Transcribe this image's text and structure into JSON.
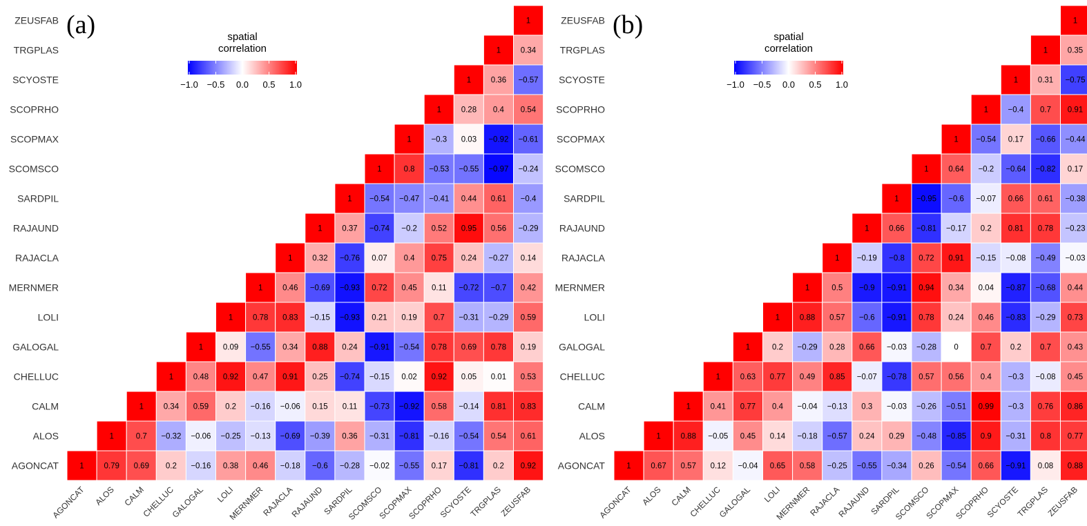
{
  "chart_data": [
    {
      "type": "heatmap",
      "panel_label": "(a)",
      "legend": {
        "title_lines": [
          "spatial",
          "correlation"
        ],
        "ticks": [
          "−1.0",
          "−0.5",
          "0.0",
          "0.5",
          "1.0"
        ],
        "tick_values": [
          -1,
          -0.5,
          0,
          0.5,
          1
        ],
        "range": [
          -1,
          1
        ],
        "colors": {
          "low": "#0000ff",
          "mid": "#ffffff",
          "high": "#ff0000"
        }
      },
      "variables": [
        "AGONCAT",
        "ALOS",
        "CALM",
        "CHELLUC",
        "GALOGAL",
        "LOLI",
        "MERNMER",
        "RAJACLA",
        "RAJAUND",
        "SARDPIL",
        "SCOMSCO",
        "SCOPMAX",
        "SCOPRHO",
        "SCYOSTE",
        "TRGPLAS",
        "ZEUSFAB"
      ],
      "rows": [
        {
          "name": "AGONCAT",
          "labels": [
            "1",
            "0.79",
            "0.69",
            "0.2",
            "−0.16",
            "0.38",
            "0.46",
            "−0.18",
            "−0.6",
            "−0.28",
            "−0.02",
            "−0.55",
            "0.17",
            "−0.81",
            "0.2",
            "0.92"
          ],
          "values": [
            1,
            0.79,
            0.69,
            0.2,
            -0.16,
            0.38,
            0.46,
            -0.18,
            -0.6,
            -0.28,
            -0.02,
            -0.55,
            0.17,
            -0.81,
            0.2,
            0.92
          ]
        },
        {
          "name": "ALOS",
          "labels": [
            "1",
            "0.7",
            "−0.32",
            "−0.06",
            "−0.25",
            "−0.13",
            "−0.69",
            "−0.39",
            "0.36",
            "−0.31",
            "−0.81",
            "−0.16",
            "−0.54",
            "0.54",
            "0.61"
          ],
          "values": [
            1,
            0.7,
            -0.32,
            -0.06,
            -0.25,
            -0.13,
            -0.69,
            -0.39,
            0.36,
            -0.31,
            -0.81,
            -0.16,
            -0.54,
            0.54,
            0.61
          ]
        },
        {
          "name": "CALM",
          "labels": [
            "1",
            "0.34",
            "0.59",
            "0.2",
            "−0.16",
            "−0.06",
            "0.15",
            "0.11",
            "−0.73",
            "−0.92",
            "0.58",
            "−0.14",
            "0.81",
            "0.83"
          ],
          "values": [
            1,
            0.34,
            0.59,
            0.2,
            -0.16,
            -0.06,
            0.15,
            0.11,
            -0.73,
            -0.92,
            0.58,
            -0.14,
            0.81,
            0.83
          ]
        },
        {
          "name": "CHELLUC",
          "labels": [
            "1",
            "0.48",
            "0.92",
            "0.47",
            "0.91",
            "0.25",
            "−0.74",
            "−0.15",
            "0.02",
            "0.92",
            "0.05",
            "0.01",
            "0.53"
          ],
          "values": [
            1,
            0.48,
            0.92,
            0.47,
            0.91,
            0.25,
            -0.74,
            -0.15,
            0.02,
            0.92,
            0.05,
            0.01,
            0.53
          ]
        },
        {
          "name": "GALOGAL",
          "labels": [
            "1",
            "0.09",
            "−0.55",
            "0.34",
            "0.88",
            "0.24",
            "−0.91",
            "−0.54",
            "0.78",
            "0.69",
            "0.78",
            "0.19"
          ],
          "values": [
            1,
            0.09,
            -0.55,
            0.34,
            0.88,
            0.24,
            -0.91,
            -0.54,
            0.78,
            0.69,
            0.78,
            0.19
          ]
        },
        {
          "name": "LOLI",
          "labels": [
            "1",
            "0.78",
            "0.83",
            "−0.15",
            "−0.93",
            "0.21",
            "0.19",
            "0.7",
            "−0.31",
            "−0.29",
            "0.59"
          ],
          "values": [
            1,
            0.78,
            0.83,
            -0.15,
            -0.93,
            0.21,
            0.19,
            0.7,
            -0.31,
            -0.29,
            0.59
          ]
        },
        {
          "name": "MERNMER",
          "labels": [
            "1",
            "0.46",
            "−0.69",
            "−0.93",
            "0.72",
            "0.45",
            "0.11",
            "−0.72",
            "−0.7",
            "0.42"
          ],
          "values": [
            1,
            0.46,
            -0.69,
            -0.93,
            0.72,
            0.45,
            0.11,
            -0.72,
            -0.7,
            0.42
          ]
        },
        {
          "name": "RAJACLA",
          "labels": [
            "1",
            "0.32",
            "−0.76",
            "0.07",
            "0.4",
            "0.75",
            "0.24",
            "−0.27",
            "0.14"
          ],
          "values": [
            1,
            0.32,
            -0.76,
            0.07,
            0.4,
            0.75,
            0.24,
            -0.27,
            0.14
          ]
        },
        {
          "name": "RAJAUND",
          "labels": [
            "1",
            "0.37",
            "−0.74",
            "−0.2",
            "0.52",
            "0.95",
            "0.56",
            "−0.29"
          ],
          "values": [
            1,
            0.37,
            -0.74,
            -0.2,
            0.52,
            0.95,
            0.56,
            -0.29
          ]
        },
        {
          "name": "SARDPIL",
          "labels": [
            "1",
            "−0.54",
            "−0.47",
            "−0.41",
            "0.44",
            "0.61",
            "−0.4"
          ],
          "values": [
            1,
            -0.54,
            -0.47,
            -0.41,
            0.44,
            0.61,
            -0.4
          ]
        },
        {
          "name": "SCOMSCO",
          "labels": [
            "1",
            "0.8",
            "−0.53",
            "−0.55",
            "−0.97",
            "−0.24"
          ],
          "values": [
            1,
            0.8,
            -0.53,
            -0.55,
            -0.97,
            -0.24
          ]
        },
        {
          "name": "SCOPMAX",
          "labels": [
            "1",
            "−0.3",
            "0.03",
            "−0.92",
            "−0.61"
          ],
          "values": [
            1,
            -0.3,
            0.03,
            -0.92,
            -0.61
          ]
        },
        {
          "name": "SCOPRHO",
          "labels": [
            "1",
            "0.28",
            "0.4",
            "0.54"
          ],
          "values": [
            1,
            0.28,
            0.4,
            0.54
          ]
        },
        {
          "name": "SCYOSTE",
          "labels": [
            "1",
            "0.36",
            "−0.57"
          ],
          "values": [
            1,
            0.36,
            -0.57
          ]
        },
        {
          "name": "TRGPLAS",
          "labels": [
            "1",
            "0.34"
          ],
          "values": [
            1,
            0.34
          ]
        },
        {
          "name": "ZEUSFAB",
          "labels": [
            "1"
          ],
          "values": [
            1
          ]
        }
      ]
    },
    {
      "type": "heatmap",
      "panel_label": "(b)",
      "legend": {
        "title_lines": [
          "spatial",
          "correlation"
        ],
        "ticks": [
          "−1.0",
          "−0.5",
          "0.0",
          "0.5",
          "1.0"
        ],
        "tick_values": [
          -1,
          -0.5,
          0,
          0.5,
          1
        ],
        "range": [
          -1,
          1
        ],
        "colors": {
          "low": "#0000ff",
          "mid": "#ffffff",
          "high": "#ff0000"
        }
      },
      "variables": [
        "AGONCAT",
        "ALOS",
        "CALM",
        "CHELLUC",
        "GALOGAL",
        "LOLI",
        "MERNMER",
        "RAJACLA",
        "RAJAUND",
        "SARDPIL",
        "SCOMSCO",
        "SCOPMAX",
        "SCOPRHO",
        "SCYOSTE",
        "TRGPLAS",
        "ZEUSFAB"
      ],
      "rows": [
        {
          "name": "AGONCAT",
          "labels": [
            "1",
            "0.67",
            "0.57",
            "0.12",
            "−0.04",
            "0.65",
            "0.58",
            "−0.25",
            "−0.55",
            "−0.34",
            "0.26",
            "−0.54",
            "0.66",
            "−0.91",
            "0.08",
            "0.88"
          ],
          "values": [
            1,
            0.67,
            0.57,
            0.12,
            -0.04,
            0.65,
            0.58,
            -0.25,
            -0.55,
            -0.34,
            0.26,
            -0.54,
            0.66,
            -0.91,
            0.08,
            0.88
          ]
        },
        {
          "name": "ALOS",
          "labels": [
            "1",
            "0.88",
            "−0.05",
            "0.45",
            "0.14",
            "−0.18",
            "−0.57",
            "0.24",
            "0.29",
            "−0.48",
            "−0.85",
            "0.9",
            "−0.31",
            "0.8",
            "0.77"
          ],
          "values": [
            1,
            0.88,
            -0.05,
            0.45,
            0.14,
            -0.18,
            -0.57,
            0.24,
            0.29,
            -0.48,
            -0.85,
            0.9,
            -0.31,
            0.8,
            0.77
          ]
        },
        {
          "name": "CALM",
          "labels": [
            "1",
            "0.41",
            "0.77",
            "0.4",
            "−0.04",
            "−0.13",
            "0.3",
            "−0.03",
            "−0.26",
            "−0.51",
            "0.99",
            "−0.3",
            "0.76",
            "0.86"
          ],
          "values": [
            1,
            0.41,
            0.77,
            0.4,
            -0.04,
            -0.13,
            0.3,
            -0.03,
            -0.26,
            -0.51,
            0.99,
            -0.3,
            0.76,
            0.86
          ]
        },
        {
          "name": "CHELLUC",
          "labels": [
            "1",
            "0.63",
            "0.77",
            "0.49",
            "0.85",
            "−0.07",
            "−0.78",
            "0.57",
            "0.56",
            "0.4",
            "−0.3",
            "−0.08",
            "0.45"
          ],
          "values": [
            1,
            0.63,
            0.77,
            0.49,
            0.85,
            -0.07,
            -0.78,
            0.57,
            0.56,
            0.4,
            -0.3,
            -0.08,
            0.45
          ]
        },
        {
          "name": "GALOGAL",
          "labels": [
            "1",
            "0.2",
            "−0.29",
            "0.28",
            "0.66",
            "−0.03",
            "−0.28",
            "0",
            "0.7",
            "0.2",
            "0.7",
            "0.43"
          ],
          "values": [
            1,
            0.2,
            -0.29,
            0.28,
            0.66,
            -0.03,
            -0.28,
            0,
            0.7,
            0.2,
            0.7,
            0.43
          ]
        },
        {
          "name": "LOLI",
          "labels": [
            "1",
            "0.88",
            "0.57",
            "−0.6",
            "−0.91",
            "0.78",
            "0.24",
            "0.46",
            "−0.83",
            "−0.29",
            "0.73"
          ],
          "values": [
            1,
            0.88,
            0.57,
            -0.6,
            -0.91,
            0.78,
            0.24,
            0.46,
            -0.83,
            -0.29,
            0.73
          ]
        },
        {
          "name": "MERNMER",
          "labels": [
            "1",
            "0.5",
            "−0.9",
            "−0.91",
            "0.94",
            "0.34",
            "0.04",
            "−0.87",
            "−0.68",
            "0.44"
          ],
          "values": [
            1,
            0.5,
            -0.9,
            -0.91,
            0.94,
            0.34,
            0.04,
            -0.87,
            -0.68,
            0.44
          ]
        },
        {
          "name": "RAJACLA",
          "labels": [
            "1",
            "−0.19",
            "−0.8",
            "0.72",
            "0.91",
            "−0.15",
            "−0.08",
            "−0.49",
            "−0.03"
          ],
          "values": [
            1,
            -0.19,
            -0.8,
            0.72,
            0.91,
            -0.15,
            -0.08,
            -0.49,
            -0.03
          ]
        },
        {
          "name": "RAJAUND",
          "labels": [
            "1",
            "0.66",
            "−0.81",
            "−0.17",
            "0.2",
            "0.81",
            "0.78",
            "−0.23"
          ],
          "values": [
            1,
            0.66,
            -0.81,
            -0.17,
            0.2,
            0.81,
            0.78,
            -0.23
          ]
        },
        {
          "name": "SARDPIL",
          "labels": [
            "1",
            "−0.95",
            "−0.6",
            "−0.07",
            "0.66",
            "0.61",
            "−0.38"
          ],
          "values": [
            1,
            -0.95,
            -0.6,
            -0.07,
            0.66,
            0.61,
            -0.38
          ]
        },
        {
          "name": "SCOMSCO",
          "labels": [
            "1",
            "0.64",
            "−0.2",
            "−0.64",
            "−0.82",
            "0.17"
          ],
          "values": [
            1,
            0.64,
            -0.2,
            -0.64,
            -0.82,
            0.17
          ]
        },
        {
          "name": "SCOPMAX",
          "labels": [
            "1",
            "−0.54",
            "0.17",
            "−0.66",
            "−0.44"
          ],
          "values": [
            1,
            -0.54,
            0.17,
            -0.66,
            -0.44
          ]
        },
        {
          "name": "SCOPRHO",
          "labels": [
            "1",
            "−0.4",
            "0.7",
            "0.91"
          ],
          "values": [
            1,
            -0.4,
            0.7,
            0.91
          ]
        },
        {
          "name": "SCYOSTE",
          "labels": [
            "1",
            "0.31",
            "−0.75"
          ],
          "values": [
            1,
            0.31,
            -0.75
          ]
        },
        {
          "name": "TRGPLAS",
          "labels": [
            "1",
            "0.35"
          ],
          "values": [
            1,
            0.35
          ]
        },
        {
          "name": "ZEUSFAB",
          "labels": [
            "1"
          ],
          "values": [
            1
          ]
        }
      ]
    }
  ]
}
